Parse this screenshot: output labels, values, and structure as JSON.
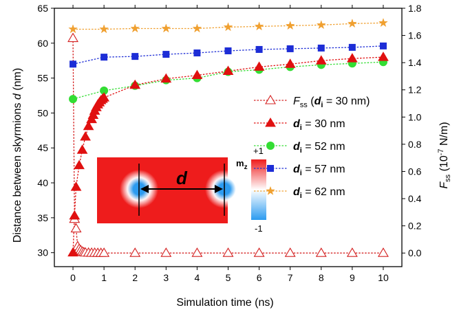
{
  "chart_data": {
    "type": "scatter",
    "x_label": "Simulation time (ns)",
    "y_left_label": {
      "main": "Distance between skyrmions ",
      "var": "d",
      "unit": " (nm)"
    },
    "y_right_label": {
      "main": "F",
      "sub": "ss",
      "unit": " (10",
      "exp": "-7",
      "unit2": " N/m)"
    },
    "x_range": [
      -0.6,
      10.6
    ],
    "y_left_range": [
      28,
      65
    ],
    "y_right_range": [
      -0.1,
      1.8
    ],
    "x_ticks": [
      0,
      1,
      2,
      3,
      4,
      5,
      6,
      7,
      8,
      9,
      10
    ],
    "y_left_ticks": [
      30,
      35,
      40,
      45,
      50,
      55,
      60,
      65
    ],
    "y_right_ticks": [
      0.0,
      0.2,
      0.4,
      0.6,
      0.8,
      1.0,
      1.2,
      1.4,
      1.6,
      1.8
    ],
    "series": [
      {
        "key": "fss",
        "legend": {
          "prefix": "F",
          "prefix_sub": "ss",
          "open": " (",
          "var": "d",
          "var_sub": "i",
          "rest": " = 30 nm)"
        },
        "axis": "right",
        "marker": "triangle-open",
        "color": "#d42020",
        "x": [
          0,
          0.05,
          0.1,
          0.15,
          0.2,
          0.25,
          0.3,
          0.35,
          0.4,
          0.5,
          0.6,
          0.7,
          0.8,
          0.9,
          1,
          2,
          3,
          4,
          5,
          6,
          7,
          8,
          9,
          10
        ],
        "y": [
          1.58,
          0.25,
          0.18,
          0.05,
          0.03,
          0.02,
          0.01,
          0.005,
          0.003,
          0.002,
          0.001,
          0.001,
          0,
          0,
          0,
          0,
          0,
          0,
          0,
          0,
          0,
          0,
          0,
          0
        ]
      },
      {
        "key": "d30",
        "legend": {
          "prefix": "",
          "prefix_sub": "",
          "open": "",
          "var": "d",
          "var_sub": "i",
          "rest": " = 30 nm"
        },
        "axis": "left",
        "marker": "triangle",
        "color": "#e01010",
        "x": [
          0,
          0.05,
          0.1,
          0.2,
          0.3,
          0.4,
          0.5,
          0.6,
          0.65,
          0.7,
          0.75,
          0.8,
          0.85,
          0.9,
          0.95,
          1,
          2,
          3,
          4,
          5,
          6,
          7,
          8,
          9,
          10
        ],
        "y": [
          30,
          35.3,
          39.4,
          42.5,
          44.7,
          46.6,
          48.1,
          49.1,
          49.7,
          50.3,
          50.8,
          51.2,
          51.5,
          51.8,
          52.0,
          52.2,
          54.0,
          54.9,
          55.4,
          56.0,
          56.6,
          57.0,
          57.5,
          57.8,
          58.0
        ]
      },
      {
        "key": "d52",
        "legend": {
          "prefix": "",
          "prefix_sub": "",
          "open": "",
          "var": "d",
          "var_sub": "i",
          "rest": " = 52 nm"
        },
        "axis": "left",
        "marker": "circle",
        "color": "#33dd33",
        "x": [
          0,
          1,
          2,
          3,
          4,
          5,
          6,
          7,
          8,
          9,
          10
        ],
        "y": [
          52,
          53.2,
          53.9,
          54.7,
          55.0,
          55.9,
          56.2,
          56.6,
          56.9,
          57.1,
          57.3
        ]
      },
      {
        "key": "d57",
        "legend": {
          "prefix": "",
          "prefix_sub": "",
          "open": "",
          "var": "d",
          "var_sub": "i",
          "rest": " = 57 nm"
        },
        "axis": "left",
        "marker": "square",
        "color": "#1d2dd6",
        "x": [
          0,
          1,
          2,
          3,
          4,
          5,
          6,
          7,
          8,
          9,
          10
        ],
        "y": [
          57,
          58.0,
          58.1,
          58.4,
          58.6,
          58.9,
          59.1,
          59.2,
          59.3,
          59.4,
          59.6
        ]
      },
      {
        "key": "d62",
        "legend": {
          "prefix": "",
          "prefix_sub": "",
          "open": "",
          "var": "d",
          "var_sub": "i",
          "rest": " = 62 nm"
        },
        "axis": "left",
        "marker": "star",
        "color": "#f0a030",
        "x": [
          0,
          1,
          2,
          3,
          4,
          5,
          6,
          7,
          8,
          9,
          10
        ],
        "y": [
          62,
          62.0,
          62.1,
          62.1,
          62.1,
          62.3,
          62.4,
          62.5,
          62.6,
          62.8,
          62.9
        ]
      }
    ],
    "inset": {
      "distance_label": "d",
      "colorbar_title": "m",
      "colorbar_sub": "z",
      "colorbar_max": "+1",
      "colorbar_min": "-1",
      "colors": {
        "background": "#ee1c1c",
        "core": "#2c9bf0",
        "halo": "#ffffff"
      }
    }
  }
}
